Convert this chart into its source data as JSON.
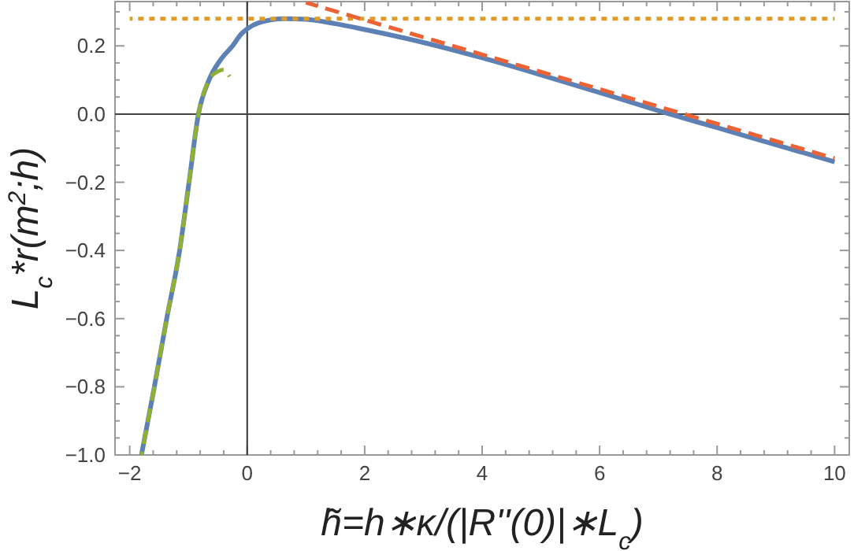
{
  "chart_data": {
    "type": "line",
    "xlabel": "h̃=h∗κ/(|R''(0)|∗L$_{c}$)",
    "ylabel": "L$_{c}$*r(m$^{2}$;h)",
    "xlim": [
      -2.25,
      10.25
    ],
    "ylim": [
      -1.0,
      0.33
    ],
    "xticks": [
      {
        "value": -2,
        "label": "−2"
      },
      0,
      2,
      4,
      6,
      8,
      10,
      {
        "value": -1.6,
        "label": null
      },
      {
        "value": -1.2,
        "label": null
      },
      {
        "value": -0.8,
        "label": null
      },
      {
        "value": -0.4,
        "label": null
      },
      {
        "value": 0.4,
        "label": null
      },
      {
        "value": 0.8,
        "label": null
      },
      {
        "value": 1.2,
        "label": null
      },
      {
        "value": 1.6,
        "label": null
      },
      {
        "value": 2.4,
        "label": null
      },
      {
        "value": 2.8,
        "label": null
      },
      {
        "value": 3.2,
        "label": null
      },
      {
        "value": 3.6,
        "label": null
      },
      {
        "value": 4.4,
        "label": null
      },
      {
        "value": 4.8,
        "label": null
      },
      {
        "value": 5.2,
        "label": null
      },
      {
        "value": 5.6,
        "label": null
      },
      {
        "value": 6.4,
        "label": null
      },
      {
        "value": 6.8,
        "label": null
      },
      {
        "value": 7.2,
        "label": null
      },
      {
        "value": 7.6,
        "label": null
      },
      {
        "value": 8.4,
        "label": null
      },
      {
        "value": 8.8,
        "label": null
      },
      {
        "value": 9.2,
        "label": null
      },
      {
        "value": 9.6,
        "label": null
      }
    ],
    "yticks": [
      {
        "value": -1.0,
        "label": "−1.0"
      },
      {
        "value": -0.8,
        "label": "−0.8"
      },
      {
        "value": -0.6,
        "label": "−0.6"
      },
      {
        "value": -0.4,
        "label": "−0.4"
      },
      {
        "value": -0.2,
        "label": "−0.2"
      },
      {
        "value": 0,
        "label": "0.0"
      },
      0.2,
      {
        "value": -0.95,
        "label": null
      },
      {
        "value": -0.9,
        "label": null
      },
      {
        "value": -0.85,
        "label": null
      },
      {
        "value": -0.75,
        "label": null
      },
      {
        "value": -0.7,
        "label": null
      },
      {
        "value": -0.65,
        "label": null
      },
      {
        "value": -0.55,
        "label": null
      },
      {
        "value": -0.5,
        "label": null
      },
      {
        "value": -0.45,
        "label": null
      },
      {
        "value": -0.35,
        "label": null
      },
      {
        "value": -0.3,
        "label": null
      },
      {
        "value": -0.25,
        "label": null
      },
      {
        "value": -0.15,
        "label": null
      },
      {
        "value": -0.1,
        "label": null
      },
      {
        "value": -0.05,
        "label": null
      },
      {
        "value": 0.05,
        "label": null
      },
      {
        "value": 0.1,
        "label": null
      },
      {
        "value": 0.15,
        "label": null
      },
      {
        "value": 0.25,
        "label": null
      },
      {
        "value": 0.3,
        "label": null
      }
    ],
    "ref_lines": [
      {
        "axis": "x",
        "value": 0,
        "color": "#333333"
      },
      {
        "axis": "y",
        "value": 0,
        "color": "#444444"
      }
    ],
    "series": [
      {
        "color": "#5e81b5",
        "line_style": "solid",
        "x": [
          -1.8,
          -1.58,
          -1.37,
          -1.15,
          -0.99,
          -0.83,
          -0.65,
          -0.45,
          -0.25,
          -0.1,
          0,
          0.2,
          0.64,
          1,
          1.5,
          2,
          3,
          4,
          5,
          6,
          7,
          8,
          9,
          10
        ],
        "values": [
          -1.0,
          -0.8,
          -0.6,
          -0.4,
          -0.2,
          0,
          0.1,
          0.16,
          0.2,
          0.235,
          0.25,
          0.268,
          0.28,
          0.278,
          0.265,
          0.248,
          0.21,
          0.165,
          0.115,
          0.063,
          0.01,
          -0.04,
          -0.09,
          -0.14
        ]
      },
      {
        "color": "#e19c24",
        "line_style": "dotted",
        "x": [
          -2,
          10
        ],
        "values": [
          0.28,
          0.28
        ]
      },
      {
        "color": "#eb6235",
        "line_style": "dashed",
        "x": [
          1,
          10
        ],
        "values": [
          0.327,
          -0.13
        ]
      },
      {
        "color": "#8fb032",
        "line_style": "dashed",
        "x": [
          -1.8,
          -1.58,
          -1.37,
          -1.15,
          -0.99,
          -0.83,
          -0.65,
          -0.5,
          -0.4,
          -0.3
        ],
        "values": [
          -1.0,
          -0.8,
          -0.6,
          -0.4,
          -0.2,
          0,
          0.1,
          0.125,
          0.13,
          0.11
        ]
      }
    ]
  }
}
